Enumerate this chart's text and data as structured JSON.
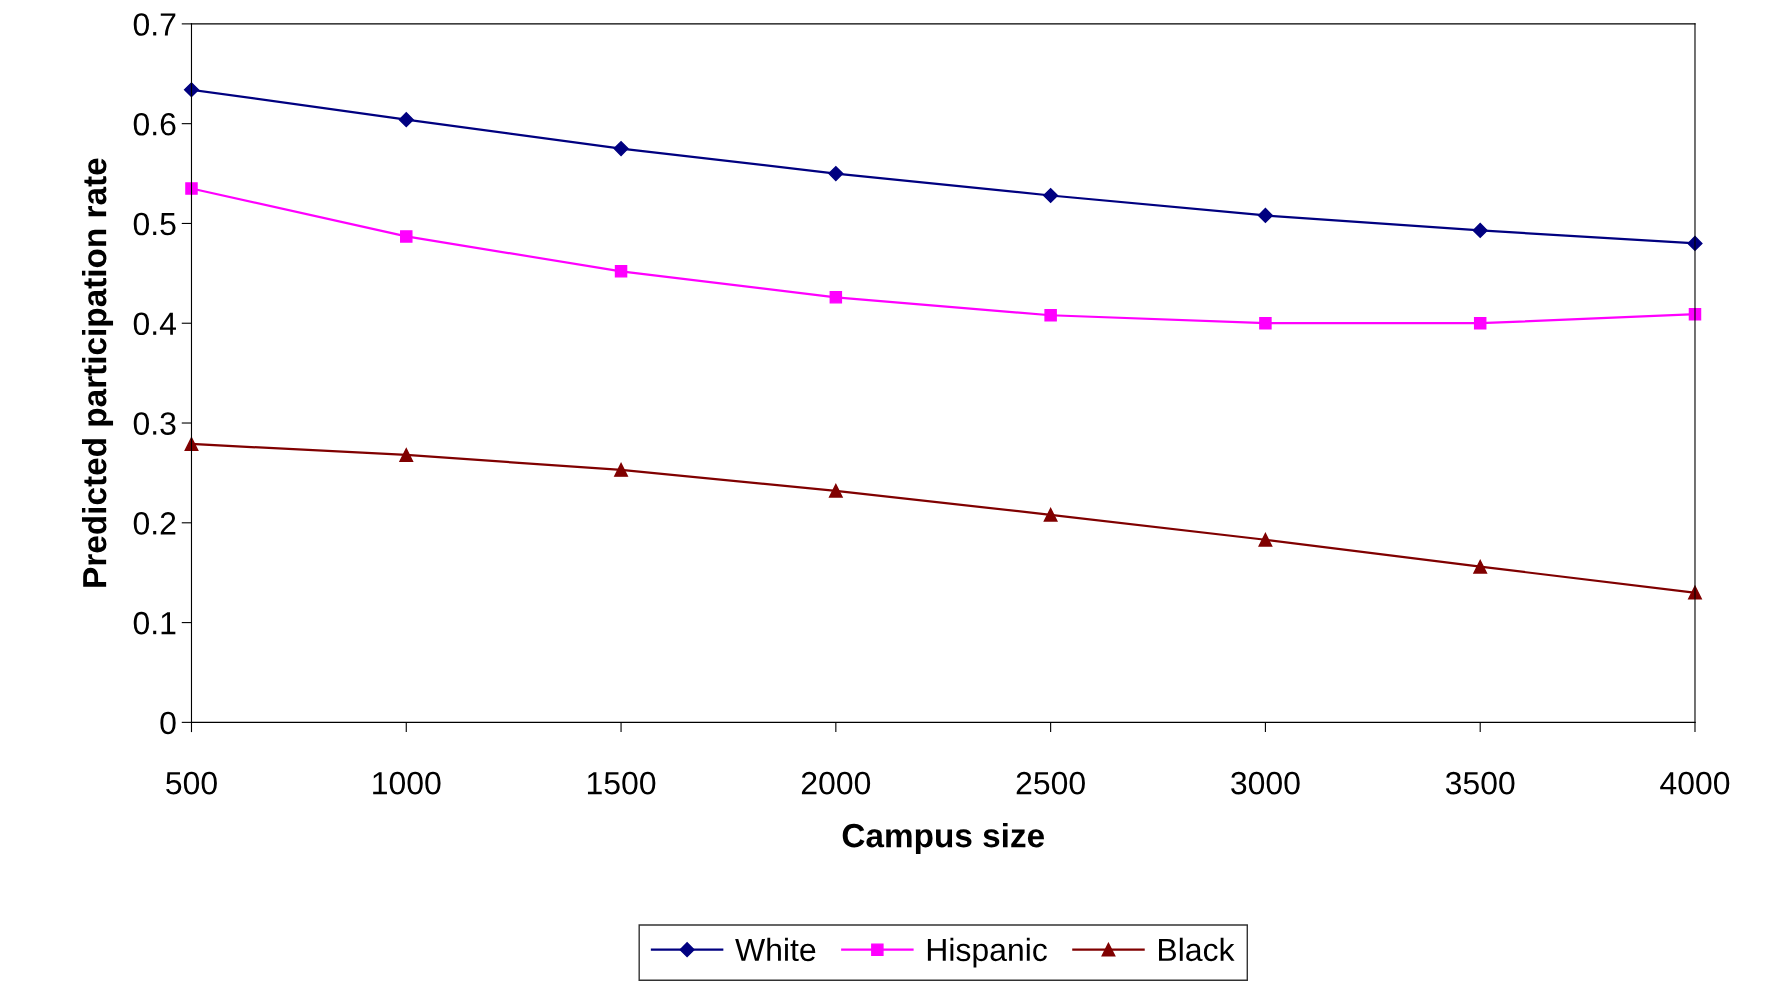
{
  "chart_data": {
    "type": "line",
    "xlabel": "Campus size",
    "ylabel": "Predicted participation rate",
    "categories": [
      "500",
      "1000",
      "1500",
      "2000",
      "2500",
      "3000",
      "3500",
      "4000"
    ],
    "series": [
      {
        "name": "White",
        "color": "#000080",
        "marker": "diamond",
        "values": [
          0.634,
          0.604,
          0.575,
          0.55,
          0.528,
          0.508,
          0.493,
          0.48
        ]
      },
      {
        "name": "Hispanic",
        "color": "#ff00ff",
        "marker": "square",
        "values": [
          0.535,
          0.487,
          0.452,
          0.426,
          0.408,
          0.4,
          0.4,
          0.409
        ]
      },
      {
        "name": "Black",
        "color": "#800000",
        "marker": "triangle",
        "values": [
          0.279,
          0.268,
          0.253,
          0.232,
          0.208,
          0.183,
          0.156,
          0.13
        ]
      }
    ],
    "ylim": [
      0,
      0.7
    ],
    "yticks": [
      0,
      0.1,
      0.2,
      0.3,
      0.4,
      0.5,
      0.6,
      0.7
    ],
    "grid": false,
    "legend": "bottom",
    "line_style": "solid"
  }
}
